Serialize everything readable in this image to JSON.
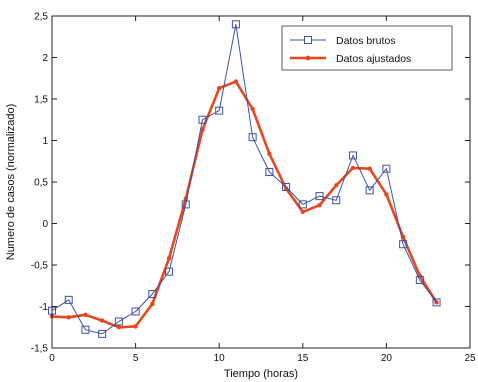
{
  "chart_data": {
    "type": "line",
    "xlabel": "Tiempo (horas)",
    "ylabel": "Numero de casos (normalizado)",
    "xlim": [
      0,
      25
    ],
    "ylim": [
      -1.5,
      2.5
    ],
    "x_ticks": [
      0,
      5,
      10,
      15,
      20,
      25
    ],
    "x_tick_labels": [
      "0",
      "5",
      "10",
      "15",
      "20",
      "25"
    ],
    "y_ticks": [
      -1.5,
      -1,
      -0.5,
      0,
      0.5,
      1,
      1.5,
      2,
      2.5
    ],
    "y_tick_labels": [
      "-1,5",
      "-1",
      "-0,5",
      "0",
      "0,5",
      "1",
      "1,5",
      "2",
      "2,5"
    ],
    "grid": false,
    "legend_position": "top-right",
    "series": [
      {
        "name": "Datos brutos",
        "color": "#3f51a3",
        "marker": "square",
        "x": [
          0,
          1,
          2,
          3,
          4,
          5,
          6,
          7,
          8,
          9,
          10,
          11,
          12,
          13,
          14,
          15,
          16,
          17,
          18,
          19,
          20,
          21,
          22,
          23
        ],
        "y": [
          -1.05,
          -0.92,
          -1.28,
          -1.33,
          -1.18,
          -1.06,
          -0.85,
          -0.58,
          0.23,
          1.25,
          1.36,
          2.4,
          1.04,
          0.62,
          0.44,
          0.23,
          0.33,
          0.28,
          0.82,
          0.4,
          0.66,
          -0.25,
          -0.68,
          -0.95
        ]
      },
      {
        "name": "Datos ajustados",
        "color": "#e8461c",
        "marker": "dot",
        "x": [
          0,
          1,
          2,
          3,
          4,
          5,
          6,
          7,
          8,
          9,
          10,
          11,
          12,
          13,
          14,
          15,
          16,
          17,
          18,
          19,
          20,
          21,
          22,
          23
        ],
        "y": [
          -1.12,
          -1.13,
          -1.1,
          -1.17,
          -1.25,
          -1.24,
          -0.97,
          -0.42,
          0.3,
          1.13,
          1.63,
          1.71,
          1.38,
          0.84,
          0.42,
          0.14,
          0.22,
          0.46,
          0.67,
          0.66,
          0.35,
          -0.16,
          -0.63,
          -0.95
        ]
      }
    ]
  }
}
